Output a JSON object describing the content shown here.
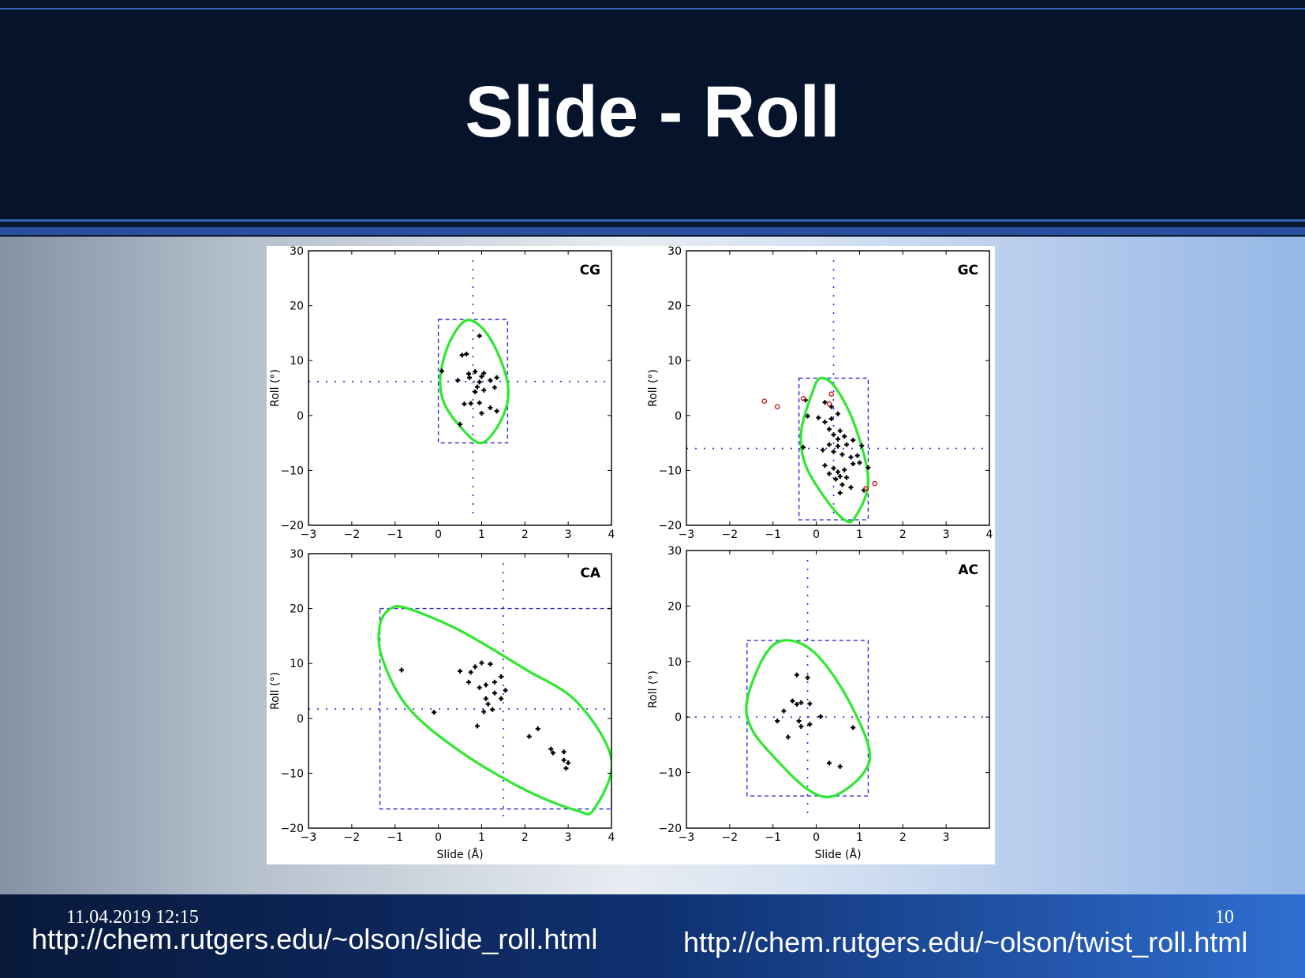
{
  "slide": {
    "title": "Slide - Roll",
    "footer_date": "11.04.2019 12:15",
    "page_number": "10",
    "link_left": "http://chem.rutgers.edu/~olson/slide_roll.html",
    "link_right": "http://chem.rutgers.edu/~olson/twist_roll.html"
  },
  "colors": {
    "ellipse": "#2ee82e",
    "box": "#2b2bd0",
    "points": "#000000",
    "outliers": "#cc1a1a"
  },
  "chart_data": [
    {
      "type": "scatter",
      "panel": "CG",
      "xlabel": "",
      "ylabel": "Roll (°)",
      "xlim": [
        -3,
        4
      ],
      "ylim": [
        -20,
        30
      ],
      "xticks": [
        -3,
        -2,
        -1,
        0,
        1,
        2,
        3,
        4
      ],
      "yticks": [
        -20,
        -10,
        0,
        10,
        20,
        30
      ],
      "x_tick_labels": [
        "−3",
        "−2",
        "−1",
        "0",
        "1",
        "2",
        "3",
        "4"
      ],
      "y_tick_labels": [
        "−20",
        "−10",
        "0",
        "10",
        "20",
        "30"
      ],
      "mean": [
        0.8,
        6.2
      ],
      "box": {
        "x": [
          0,
          1.6
        ],
        "y": [
          -5,
          17.5
        ]
      },
      "ellipse": [
        [
          0.06,
          8
        ],
        [
          0.3,
          14
        ],
        [
          0.7,
          17.4
        ],
        [
          1.2,
          14
        ],
        [
          1.6,
          6
        ],
        [
          1.5,
          0
        ],
        [
          1.0,
          -5
        ],
        [
          0.45,
          -1.5
        ],
        [
          0.1,
          3
        ]
      ],
      "points": [
        [
          0.08,
          8.1
        ],
        [
          0.55,
          11
        ],
        [
          0.65,
          11.2
        ],
        [
          0.95,
          14.5
        ],
        [
          0.45,
          6.4
        ],
        [
          0.7,
          7.6
        ],
        [
          0.72,
          6.9
        ],
        [
          0.85,
          8
        ],
        [
          1.0,
          7.1
        ],
        [
          1.05,
          7.7
        ],
        [
          1.2,
          6.4
        ],
        [
          0.95,
          6.1
        ],
        [
          0.9,
          5.2
        ],
        [
          0.85,
          4.3
        ],
        [
          1.05,
          4.6
        ],
        [
          1.3,
          5.1
        ],
        [
          1.35,
          6.9
        ],
        [
          0.6,
          2.1
        ],
        [
          0.75,
          2.2
        ],
        [
          0.95,
          2.3
        ],
        [
          1.2,
          1.4
        ],
        [
          1.35,
          0.8
        ],
        [
          0.5,
          -1.6
        ],
        [
          1.0,
          0.4
        ]
      ],
      "outliers": []
    },
    {
      "type": "scatter",
      "panel": "GC",
      "xlabel": "",
      "ylabel": "Roll (°)",
      "xlim": [
        -3,
        4
      ],
      "ylim": [
        -20,
        30
      ],
      "xticks": [
        -3,
        -2,
        -1,
        0,
        1,
        2,
        3,
        4
      ],
      "yticks": [
        -20,
        -10,
        0,
        10,
        20,
        30
      ],
      "x_tick_labels": [
        "−3",
        "−2",
        "−1",
        "0",
        "1",
        "2",
        "3",
        "4"
      ],
      "y_tick_labels": [
        "−20",
        "−10",
        "0",
        "10",
        "20",
        "30"
      ],
      "mean": [
        0.4,
        -6
      ],
      "box": {
        "x": [
          -0.4,
          1.2
        ],
        "y": [
          -19,
          6.8
        ]
      },
      "ellipse": [
        [
          -0.35,
          -3
        ],
        [
          -0.1,
          4
        ],
        [
          0.1,
          6.8
        ],
        [
          0.45,
          5
        ],
        [
          0.9,
          -2
        ],
        [
          1.2,
          -12
        ],
        [
          0.9,
          -18.5
        ],
        [
          0.65,
          -19
        ],
        [
          0.2,
          -15
        ],
        [
          -0.25,
          -9
        ]
      ],
      "points": [
        [
          -0.25,
          2.8
        ],
        [
          0.2,
          2.4
        ],
        [
          0.35,
          1.6
        ],
        [
          -0.2,
          -0.1
        ],
        [
          0.05,
          -0.4
        ],
        [
          0.35,
          -0.6
        ],
        [
          0.5,
          0.3
        ],
        [
          0.2,
          -1.2
        ],
        [
          0.3,
          -2.5
        ],
        [
          0.4,
          -3.5
        ],
        [
          0.5,
          -4.3
        ],
        [
          0.55,
          -2.8
        ],
        [
          0.65,
          -3.8
        ],
        [
          0.3,
          -5.3
        ],
        [
          0.5,
          -5.6
        ],
        [
          0.7,
          -5.3
        ],
        [
          0.85,
          -4.5
        ],
        [
          0.15,
          -6.3
        ],
        [
          0.4,
          -6.6
        ],
        [
          0.6,
          -7.1
        ],
        [
          0.8,
          -7.6
        ],
        [
          0.95,
          -7.3
        ],
        [
          1.0,
          -8.6
        ],
        [
          0.2,
          -9.1
        ],
        [
          0.4,
          -9.6
        ],
        [
          0.5,
          -10.3
        ],
        [
          0.65,
          -9.9
        ],
        [
          0.85,
          -8.8
        ],
        [
          0.3,
          -10.6
        ],
        [
          0.45,
          -11.6
        ],
        [
          0.55,
          -11.1
        ],
        [
          0.7,
          -11.3
        ],
        [
          0.6,
          -12.6
        ],
        [
          0.8,
          -13.1
        ],
        [
          1.1,
          -13.6
        ],
        [
          0.55,
          -14.1
        ],
        [
          1.05,
          -5.5
        ],
        [
          1.2,
          -9.5
        ],
        [
          -0.3,
          -5.8
        ]
      ],
      "outliers": [
        [
          -1.2,
          2.6
        ],
        [
          -0.9,
          1.6
        ],
        [
          -0.3,
          3.1
        ],
        [
          0.35,
          3.9
        ],
        [
          0.3,
          2.1
        ],
        [
          1.15,
          -13.3
        ],
        [
          1.35,
          -12.4
        ]
      ]
    },
    {
      "type": "scatter",
      "panel": "CA",
      "xlabel": "Slide (Å)",
      "ylabel": "Roll (°)",
      "xlim": [
        -3,
        4
      ],
      "ylim": [
        -20,
        30
      ],
      "xticks": [
        -3,
        -2,
        -1,
        0,
        1,
        2,
        3,
        4
      ],
      "yticks": [
        -20,
        -10,
        0,
        10,
        20,
        30
      ],
      "x_tick_labels": [
        "−3",
        "−2",
        "−1",
        "0",
        "1",
        "2",
        "3",
        "4"
      ],
      "y_tick_labels": [
        "−20",
        "−10",
        "0",
        "10",
        "20",
        "30"
      ],
      "mean": [
        1.5,
        1.7
      ],
      "box": {
        "x": [
          -1.35,
          4
        ],
        "y": [
          -16.5,
          20
        ]
      },
      "ellipse": [
        [
          -1.35,
          17
        ],
        [
          -1.1,
          20
        ],
        [
          -0.7,
          20
        ],
        [
          0.5,
          16
        ],
        [
          2.0,
          9
        ],
        [
          3.2,
          3
        ],
        [
          4.0,
          -7.5
        ],
        [
          3.6,
          -16.5
        ],
        [
          3.2,
          -16.8
        ],
        [
          2.0,
          -13
        ],
        [
          0.5,
          -6
        ],
        [
          -0.7,
          2
        ],
        [
          -1.3,
          11
        ]
      ],
      "points": [
        [
          -0.85,
          8.8
        ],
        [
          -0.1,
          1.1
        ],
        [
          0.5,
          8.6
        ],
        [
          0.75,
          8.4
        ],
        [
          0.85,
          9.4
        ],
        [
          1.0,
          10.1
        ],
        [
          1.2,
          9.9
        ],
        [
          0.7,
          6.6
        ],
        [
          0.95,
          5.6
        ],
        [
          1.1,
          6.1
        ],
        [
          1.3,
          6.6
        ],
        [
          1.45,
          7.6
        ],
        [
          1.55,
          5.1
        ],
        [
          1.3,
          4.6
        ],
        [
          1.45,
          3.6
        ],
        [
          1.1,
          3.6
        ],
        [
          1.15,
          2.6
        ],
        [
          1.25,
          1.6
        ],
        [
          1.05,
          1.2
        ],
        [
          0.9,
          -1.4
        ],
        [
          2.1,
          -3.3
        ],
        [
          2.3,
          -1.9
        ],
        [
          2.6,
          -5.6
        ],
        [
          2.65,
          -6.3
        ],
        [
          2.9,
          -6.1
        ],
        [
          2.9,
          -7.6
        ],
        [
          3.0,
          -8.1
        ],
        [
          2.95,
          -9.1
        ]
      ],
      "outliers": []
    },
    {
      "type": "scatter",
      "panel": "AC",
      "xlabel": "Slide (Å)",
      "ylabel": "Roll (°)",
      "xlim": [
        -3,
        4
      ],
      "ylim": [
        -20,
        30
      ],
      "xticks": [
        -3,
        -2,
        -1,
        0,
        1,
        2,
        3
      ],
      "yticks": [
        -20,
        -10,
        0,
        10,
        20,
        30
      ],
      "x_tick_labels": [
        "−3",
        "−2",
        "−1",
        "0",
        "1",
        "2",
        "3"
      ],
      "y_tick_labels": [
        "−20",
        "−10",
        "0",
        "10",
        "20",
        "30"
      ],
      "mean": [
        -0.2,
        0
      ],
      "box": {
        "x": [
          -1.6,
          1.2
        ],
        "y": [
          -14.2,
          13.8
        ]
      },
      "ellipse": [
        [
          -1.6,
          3
        ],
        [
          -1.2,
          11
        ],
        [
          -0.75,
          13.8
        ],
        [
          -0.1,
          12
        ],
        [
          0.6,
          5
        ],
        [
          1.2,
          -5
        ],
        [
          1.1,
          -10
        ],
        [
          0.4,
          -14.2
        ],
        [
          -0.2,
          -13
        ],
        [
          -1.0,
          -7
        ],
        [
          -1.5,
          -2
        ]
      ],
      "points": [
        [
          -0.45,
          7.6
        ],
        [
          -0.2,
          7.1
        ],
        [
          -0.55,
          2.9
        ],
        [
          -0.35,
          2.6
        ],
        [
          -0.45,
          2.3
        ],
        [
          -0.15,
          2.4
        ],
        [
          -0.75,
          1.1
        ],
        [
          -0.9,
          -0.7
        ],
        [
          -0.4,
          -0.7
        ],
        [
          -0.15,
          -1.3
        ],
        [
          -0.35,
          -1.7
        ],
        [
          0.1,
          0.1
        ],
        [
          0.85,
          -1.9
        ],
        [
          -0.65,
          -3.6
        ],
        [
          0.3,
          -8.3
        ],
        [
          0.55,
          -8.9
        ]
      ],
      "outliers": []
    }
  ]
}
